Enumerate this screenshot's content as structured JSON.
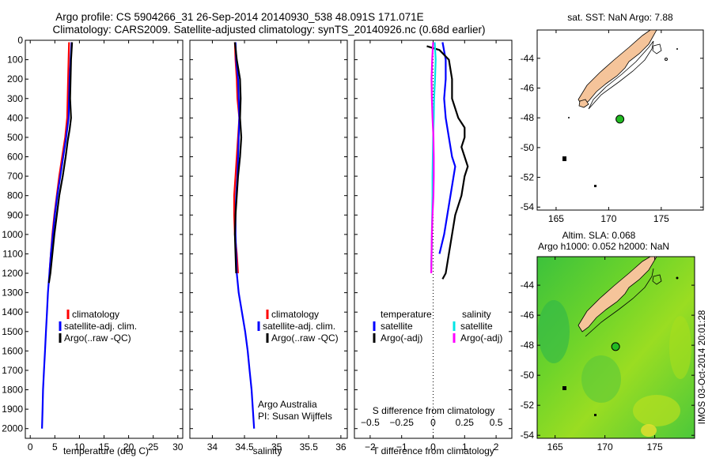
{
  "figure": {
    "title_line1": "Argo profile: CS 5904266_31 26-Sep-2014 20140930_538 48.091S 171.071E",
    "title_line2": "Climatology: CARS2009. Satellite-adjusted climatology: synTS_20140926.nc (0.68d earlier)",
    "timestamp": "IMOS 03-Oct-2014 20:01:28"
  },
  "colors": {
    "climatology": "#ff0000",
    "satellite": "#0000ff",
    "argo": "#000000",
    "salinity_satellite": "#00e5e5",
    "salinity_argo": "#ff00ff",
    "land": "#f5c49a",
    "float_marker": "#22bb22"
  },
  "legends": {
    "profile_items": [
      "climatology",
      "satellite-adj. clim.",
      "Argo(..raw -QC)"
    ],
    "diff_temperature_header": "temperature",
    "diff_salinity_header": "salinity",
    "diff_items": [
      "satellite",
      "Argo(-adj)"
    ]
  },
  "labels": {
    "argo_australia": "Argo Australia",
    "pi": "PI: Susan Wijffels"
  },
  "chart_data": [
    {
      "type": "line",
      "panel": "temperature",
      "xlabel": "temperature (deg C)",
      "xlim": [
        -1,
        31
      ],
      "ylim": [
        0,
        2050
      ],
      "y_reversed": true,
      "xticks": [
        0,
        5,
        10,
        15,
        20,
        25,
        30
      ],
      "xtick_labels": [
        "0",
        "5",
        "10",
        "15",
        "20",
        "25",
        "30"
      ],
      "yticks": [
        0,
        100,
        200,
        300,
        400,
        500,
        600,
        700,
        800,
        900,
        1000,
        1100,
        1200,
        1300,
        1400,
        1500,
        1600,
        1700,
        1800,
        1900,
        2000
      ],
      "ytick_labels": [
        "0",
        "100",
        "200",
        "300",
        "400",
        "500",
        "600",
        "700",
        "800",
        "900",
        "1000",
        "1100",
        "1200",
        "1300",
        "1400",
        "1500",
        "1600",
        "1700",
        "1800",
        "1900",
        "2000"
      ],
      "series": [
        {
          "name": "climatology",
          "color": "#ff0000",
          "points": [
            [
              7.9,
              10
            ],
            [
              7.8,
              100
            ],
            [
              7.7,
              200
            ],
            [
              7.6,
              300
            ],
            [
              7.5,
              400
            ],
            [
              7.1,
              500
            ],
            [
              6.5,
              600
            ],
            [
              5.9,
              700
            ],
            [
              5.4,
              800
            ],
            [
              4.9,
              900
            ],
            [
              4.5,
              1000
            ],
            [
              4.2,
              1100
            ],
            [
              3.9,
              1200
            ]
          ]
        },
        {
          "name": "satellite-adj. clim.",
          "color": "#0000ff",
          "points": [
            [
              8.4,
              10
            ],
            [
              8.2,
              100
            ],
            [
              8.0,
              200
            ],
            [
              7.9,
              300
            ],
            [
              7.8,
              400
            ],
            [
              7.3,
              500
            ],
            [
              6.7,
              600
            ],
            [
              6.1,
              700
            ],
            [
              5.5,
              800
            ],
            [
              5.0,
              900
            ],
            [
              4.6,
              1000
            ],
            [
              4.2,
              1100
            ],
            [
              3.9,
              1200
            ],
            [
              3.6,
              1300
            ],
            [
              3.4,
              1400
            ],
            [
              3.2,
              1500
            ],
            [
              3.0,
              1600
            ],
            [
              2.8,
              1700
            ],
            [
              2.6,
              1800
            ],
            [
              2.5,
              1900
            ],
            [
              2.4,
              2000
            ]
          ]
        },
        {
          "name": "Argo(..raw -QC)",
          "color": "#000000",
          "points": [
            [
              8.5,
              10
            ],
            [
              8.3,
              100
            ],
            [
              8.2,
              200
            ],
            [
              8.1,
              300
            ],
            [
              8.3,
              400
            ],
            [
              8.0,
              460
            ],
            [
              7.6,
              520
            ],
            [
              7.2,
              600
            ],
            [
              6.6,
              700
            ],
            [
              5.9,
              800
            ],
            [
              5.4,
              900
            ],
            [
              4.9,
              1000
            ],
            [
              4.5,
              1100
            ],
            [
              4.1,
              1200
            ],
            [
              3.8,
              1250
            ]
          ]
        }
      ]
    },
    {
      "type": "line",
      "panel": "salinity",
      "xlabel": "salinity",
      "xlim": [
        33.65,
        36.1
      ],
      "ylim": [
        0,
        2050
      ],
      "y_reversed": true,
      "xticks": [
        34,
        34.5,
        35,
        35.5,
        36
      ],
      "xtick_labels": [
        "34",
        "34.5",
        "35",
        "35.5",
        "36"
      ],
      "series": [
        {
          "name": "climatology",
          "color": "#ff0000",
          "points": [
            [
              34.35,
              10
            ],
            [
              34.36,
              100
            ],
            [
              34.38,
              200
            ],
            [
              34.39,
              300
            ],
            [
              34.42,
              400
            ],
            [
              34.4,
              500
            ],
            [
              34.38,
              600
            ],
            [
              34.36,
              700
            ],
            [
              34.34,
              800
            ],
            [
              34.34,
              900
            ],
            [
              34.35,
              1000
            ],
            [
              34.38,
              1100
            ],
            [
              34.4,
              1200
            ]
          ]
        },
        {
          "name": "satellite-adj. clim.",
          "color": "#0000ff",
          "points": [
            [
              34.36,
              10
            ],
            [
              34.37,
              100
            ],
            [
              34.4,
              200
            ],
            [
              34.41,
              300
            ],
            [
              34.42,
              400
            ],
            [
              34.41,
              500
            ],
            [
              34.4,
              600
            ],
            [
              34.39,
              700
            ],
            [
              34.37,
              800
            ],
            [
              34.36,
              900
            ],
            [
              34.36,
              1000
            ],
            [
              34.37,
              1100
            ],
            [
              34.38,
              1200
            ],
            [
              34.41,
              1300
            ],
            [
              34.46,
              1400
            ],
            [
              34.51,
              1500
            ],
            [
              34.55,
              1600
            ],
            [
              34.58,
              1700
            ],
            [
              34.61,
              1800
            ],
            [
              34.63,
              1900
            ],
            [
              34.65,
              2000
            ]
          ]
        },
        {
          "name": "Argo(..raw -QC)",
          "color": "#000000",
          "points": [
            [
              34.35,
              10
            ],
            [
              34.38,
              100
            ],
            [
              34.43,
              200
            ],
            [
              34.44,
              300
            ],
            [
              34.43,
              400
            ],
            [
              34.45,
              500
            ],
            [
              34.43,
              600
            ],
            [
              34.4,
              700
            ],
            [
              34.38,
              800
            ],
            [
              34.36,
              900
            ],
            [
              34.35,
              1000
            ],
            [
              34.36,
              1100
            ],
            [
              34.37,
              1200
            ]
          ]
        }
      ]
    },
    {
      "type": "line",
      "panel": "difference",
      "xlabel": "T difference from climatology",
      "xlabel_top": "S difference from climatology",
      "xlim": [
        -2.5,
        2.5
      ],
      "ylim": [
        0,
        2050
      ],
      "y_reversed": true,
      "xticks": [
        -2,
        -1,
        0,
        1,
        2
      ],
      "xtick_labels": [
        "−2",
        "−1",
        "0",
        "1",
        "2"
      ],
      "s_ticks": [
        -0.5,
        -0.25,
        0,
        0.25,
        0.5
      ],
      "s_tick_labels": [
        "−0.5",
        "−0.25",
        "0",
        "0.25",
        "0.5"
      ],
      "series": [
        {
          "name": "temperature satellite",
          "color": "#0000ff",
          "points": [
            [
              0.3,
              10
            ],
            [
              0.4,
              100
            ],
            [
              0.4,
              200
            ],
            [
              0.35,
              300
            ],
            [
              0.4,
              400
            ],
            [
              0.5,
              500
            ],
            [
              0.55,
              550
            ],
            [
              0.6,
              600
            ],
            [
              0.7,
              650
            ],
            [
              0.65,
              700
            ],
            [
              0.55,
              800
            ],
            [
              0.45,
              900
            ],
            [
              0.35,
              1000
            ],
            [
              0.2,
              1100
            ]
          ]
        },
        {
          "name": "temperature Argo(-adj)",
          "color": "#000000",
          "points": [
            [
              -0.2,
              30
            ],
            [
              0.2,
              50
            ],
            [
              0.5,
              100
            ],
            [
              0.6,
              200
            ],
            [
              0.6,
              300
            ],
            [
              0.8,
              400
            ],
            [
              1.0,
              450
            ],
            [
              1.0,
              500
            ],
            [
              0.9,
              550
            ],
            [
              1.0,
              600
            ],
            [
              1.1,
              650
            ],
            [
              1.0,
              700
            ],
            [
              0.9,
              800
            ],
            [
              0.7,
              900
            ],
            [
              0.6,
              1000
            ],
            [
              0.5,
              1100
            ],
            [
              0.4,
              1200
            ],
            [
              0.3,
              1230
            ]
          ]
        },
        {
          "name": "salinity satellite",
          "color": "#00e5e5",
          "points": [
            [
              0.05,
              10
            ],
            [
              0.08,
              100
            ],
            [
              0.06,
              200
            ],
            [
              0.03,
              300
            ],
            [
              0.02,
              400
            ],
            [
              0.0,
              500
            ],
            [
              -0.01,
              600
            ],
            [
              -0.02,
              700
            ],
            [
              -0.02,
              800
            ],
            [
              -0.03,
              900
            ],
            [
              -0.04,
              1000
            ],
            [
              -0.05,
              1100
            ],
            [
              -0.06,
              1170
            ]
          ]
        },
        {
          "name": "salinity Argo(-adj)",
          "color": "#ff00ff",
          "points": [
            [
              0.0,
              10
            ],
            [
              -0.03,
              100
            ],
            [
              -0.05,
              200
            ],
            [
              -0.04,
              300
            ],
            [
              -0.02,
              400
            ],
            [
              0.01,
              500
            ],
            [
              0.02,
              600
            ],
            [
              0.02,
              700
            ],
            [
              0.01,
              800
            ],
            [
              -0.02,
              900
            ],
            [
              -0.04,
              1000
            ],
            [
              -0.05,
              1100
            ],
            [
              -0.06,
              1200
            ]
          ]
        }
      ]
    },
    {
      "type": "map",
      "panel": "sst_map",
      "title": "sat. SST: NaN Argo: 7.88",
      "xlim": [
        163.2,
        179
      ],
      "ylim": [
        -54.2,
        -42.1
      ],
      "xticks": [
        165,
        170,
        175
      ],
      "xtick_labels": [
        "165",
        "170",
        "175"
      ],
      "yticks": [
        -44,
        -46,
        -48,
        -50,
        -52,
        -54
      ],
      "ytick_labels": [
        "-44",
        "-46",
        "-48",
        "-50",
        "-52",
        "-54"
      ],
      "float_position": {
        "lon": 171.071,
        "lat": -48.091
      }
    },
    {
      "type": "map",
      "panel": "sla_map",
      "title_line1": "Altim. SLA: 0.068",
      "title_line2": "Argo h1000: 0.052 h2000: NaN",
      "xlim": [
        163.2,
        179
      ],
      "ylim": [
        -54.2,
        -42.1
      ],
      "xticks": [
        165,
        170,
        175
      ],
      "xtick_labels": [
        "165",
        "170",
        "175"
      ],
      "yticks": [
        -44,
        -46,
        -48,
        -50,
        -52,
        -54
      ],
      "ytick_labels": [
        "-44",
        "-46",
        "-48",
        "-50",
        "-52",
        "-54"
      ],
      "float_position": {
        "lon": 171.071,
        "lat": -48.091
      }
    }
  ]
}
